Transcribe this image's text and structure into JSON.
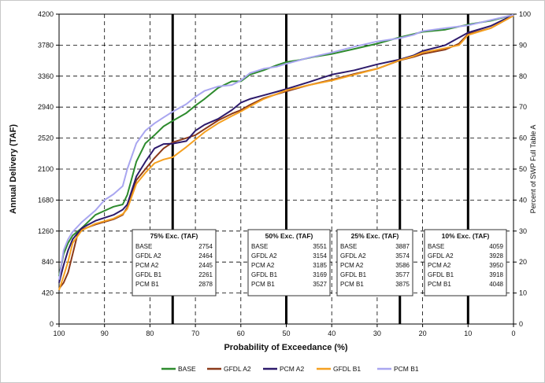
{
  "chart_data": {
    "type": "line",
    "xlabel": "Probability of Exceedance (%)",
    "ylabel": "Annual Delivery (TAF)",
    "y2label": "Percent of SWP Full Table A",
    "xlim": [
      100,
      0
    ],
    "ylim": [
      0,
      4200
    ],
    "y2lim": [
      0,
      100
    ],
    "x_ticks": [
      100,
      90,
      80,
      70,
      60,
      50,
      40,
      30,
      20,
      10,
      0
    ],
    "y_ticks": [
      0,
      420,
      840,
      1260,
      1680,
      2100,
      2520,
      2940,
      3360,
      3780,
      4200
    ],
    "y2_ticks": [
      0,
      10,
      20,
      30,
      40,
      50,
      60,
      70,
      80,
      90,
      100
    ],
    "grid": true,
    "legend_position": "bottom",
    "reference_lines_x": [
      75,
      50,
      25,
      10
    ],
    "series": [
      {
        "name": "BASE",
        "color": "#2e8b2e",
        "x": [
          100,
          99,
          98,
          97,
          95,
          92,
          88,
          86,
          85,
          83,
          81,
          79,
          77,
          75,
          72,
          70,
          68,
          65,
          62,
          60,
          58,
          55,
          52,
          50,
          47,
          44,
          40,
          35,
          30,
          25,
          22,
          20,
          15,
          10,
          5,
          0
        ],
        "y": [
          650,
          950,
          1100,
          1200,
          1300,
          1480,
          1590,
          1620,
          1750,
          2200,
          2450,
          2560,
          2680,
          2754,
          2860,
          2960,
          3050,
          3200,
          3290,
          3290,
          3380,
          3440,
          3510,
          3551,
          3580,
          3620,
          3660,
          3730,
          3800,
          3887,
          3930,
          3960,
          3990,
          4059,
          4110,
          4190
        ]
      },
      {
        "name": "GFDL A2",
        "color": "#8b3a1a",
        "x": [
          100,
          99,
          98,
          97,
          96,
          95,
          92,
          88,
          86,
          85,
          83,
          81,
          79,
          77,
          75,
          72,
          70,
          68,
          65,
          62,
          60,
          58,
          55,
          50,
          45,
          40,
          35,
          30,
          25,
          22,
          20,
          15,
          12,
          10,
          5,
          0
        ],
        "y": [
          480,
          560,
          700,
          950,
          1200,
          1280,
          1350,
          1420,
          1480,
          1580,
          1950,
          2100,
          2250,
          2380,
          2464,
          2520,
          2560,
          2640,
          2760,
          2850,
          2900,
          2970,
          3060,
          3154,
          3240,
          3310,
          3390,
          3460,
          3574,
          3620,
          3660,
          3720,
          3800,
          3928,
          4010,
          4180
        ]
      },
      {
        "name": "PCM A2",
        "color": "#2d1a6b",
        "x": [
          100,
          99,
          98,
          97,
          95,
          92,
          88,
          86,
          85,
          83,
          81,
          79,
          77,
          75,
          72,
          70,
          68,
          65,
          62,
          60,
          58,
          55,
          52,
          50,
          45,
          40,
          35,
          30,
          25,
          22,
          20,
          15,
          10,
          5,
          0
        ],
        "y": [
          560,
          800,
          1000,
          1150,
          1300,
          1400,
          1480,
          1550,
          1620,
          2000,
          2200,
          2380,
          2440,
          2445,
          2480,
          2620,
          2700,
          2780,
          2900,
          3000,
          3050,
          3100,
          3150,
          3185,
          3280,
          3380,
          3440,
          3520,
          3586,
          3640,
          3700,
          3780,
          3950,
          4040,
          4190
        ]
      },
      {
        "name": "GFDL B1",
        "color": "#f5a020",
        "x": [
          100,
          99,
          98,
          97,
          95,
          92,
          88,
          86,
          85,
          83,
          81,
          79,
          77,
          75,
          72,
          70,
          68,
          65,
          62,
          60,
          58,
          55,
          52,
          50,
          45,
          40,
          35,
          30,
          25,
          22,
          20,
          15,
          12,
          10,
          5,
          0
        ],
        "y": [
          460,
          650,
          850,
          1100,
          1270,
          1360,
          1430,
          1490,
          1560,
          1900,
          2050,
          2180,
          2230,
          2261,
          2400,
          2500,
          2600,
          2720,
          2820,
          2880,
          2950,
          3050,
          3120,
          3169,
          3240,
          3300,
          3380,
          3460,
          3577,
          3630,
          3680,
          3740,
          3780,
          3918,
          4010,
          4180
        ]
      },
      {
        "name": "PCM B1",
        "color": "#a9a6f0",
        "x": [
          100,
          99,
          98,
          97,
          95,
          92,
          90,
          88,
          86,
          85,
          83,
          81,
          79,
          77,
          75,
          72,
          70,
          68,
          65,
          62,
          60,
          58,
          55,
          52,
          50,
          45,
          40,
          35,
          30,
          25,
          22,
          20,
          15,
          10,
          5,
          0
        ],
        "y": [
          600,
          1000,
          1150,
          1250,
          1380,
          1540,
          1680,
          1760,
          1870,
          2100,
          2450,
          2620,
          2720,
          2800,
          2878,
          2980,
          3080,
          3160,
          3220,
          3240,
          3300,
          3400,
          3460,
          3490,
          3527,
          3610,
          3680,
          3760,
          3830,
          3875,
          3920,
          3970,
          4010,
          4048,
          4120,
          4190
        ]
      }
    ],
    "summary_boxes": [
      {
        "title": "75% Exc. (TAF)",
        "rows": [
          {
            "label": "BASE",
            "value": "2754"
          },
          {
            "label": "GFDL A2",
            "value": "2464"
          },
          {
            "label": "PCM A2",
            "value": "2445"
          },
          {
            "label": "GFDL B1",
            "value": "2261"
          },
          {
            "label": "PCM B1",
            "value": "2878"
          }
        ]
      },
      {
        "title": "50% Exc. (TAF)",
        "rows": [
          {
            "label": "BASE",
            "value": "3551"
          },
          {
            "label": "GFDL A2",
            "value": "3154"
          },
          {
            "label": "PCM A2",
            "value": "3185"
          },
          {
            "label": "GFDL B1",
            "value": "3169"
          },
          {
            "label": "PCM B1",
            "value": "3527"
          }
        ]
      },
      {
        "title": "25% Exc. (TAF)",
        "rows": [
          {
            "label": "BASE",
            "value": "3887"
          },
          {
            "label": "GFDL A2",
            "value": "3574"
          },
          {
            "label": "PCM A2",
            "value": "3586"
          },
          {
            "label": "GFDL B1",
            "value": "3577"
          },
          {
            "label": "PCM B1",
            "value": "3875"
          }
        ]
      },
      {
        "title": "10% Exc. (TAF)",
        "rows": [
          {
            "label": "BASE",
            "value": "4059"
          },
          {
            "label": "GFDL A2",
            "value": "3928"
          },
          {
            "label": "PCM A2",
            "value": "3950"
          },
          {
            "label": "GFDL B1",
            "value": "3918"
          },
          {
            "label": "PCM B1",
            "value": "4048"
          }
        ]
      }
    ]
  }
}
